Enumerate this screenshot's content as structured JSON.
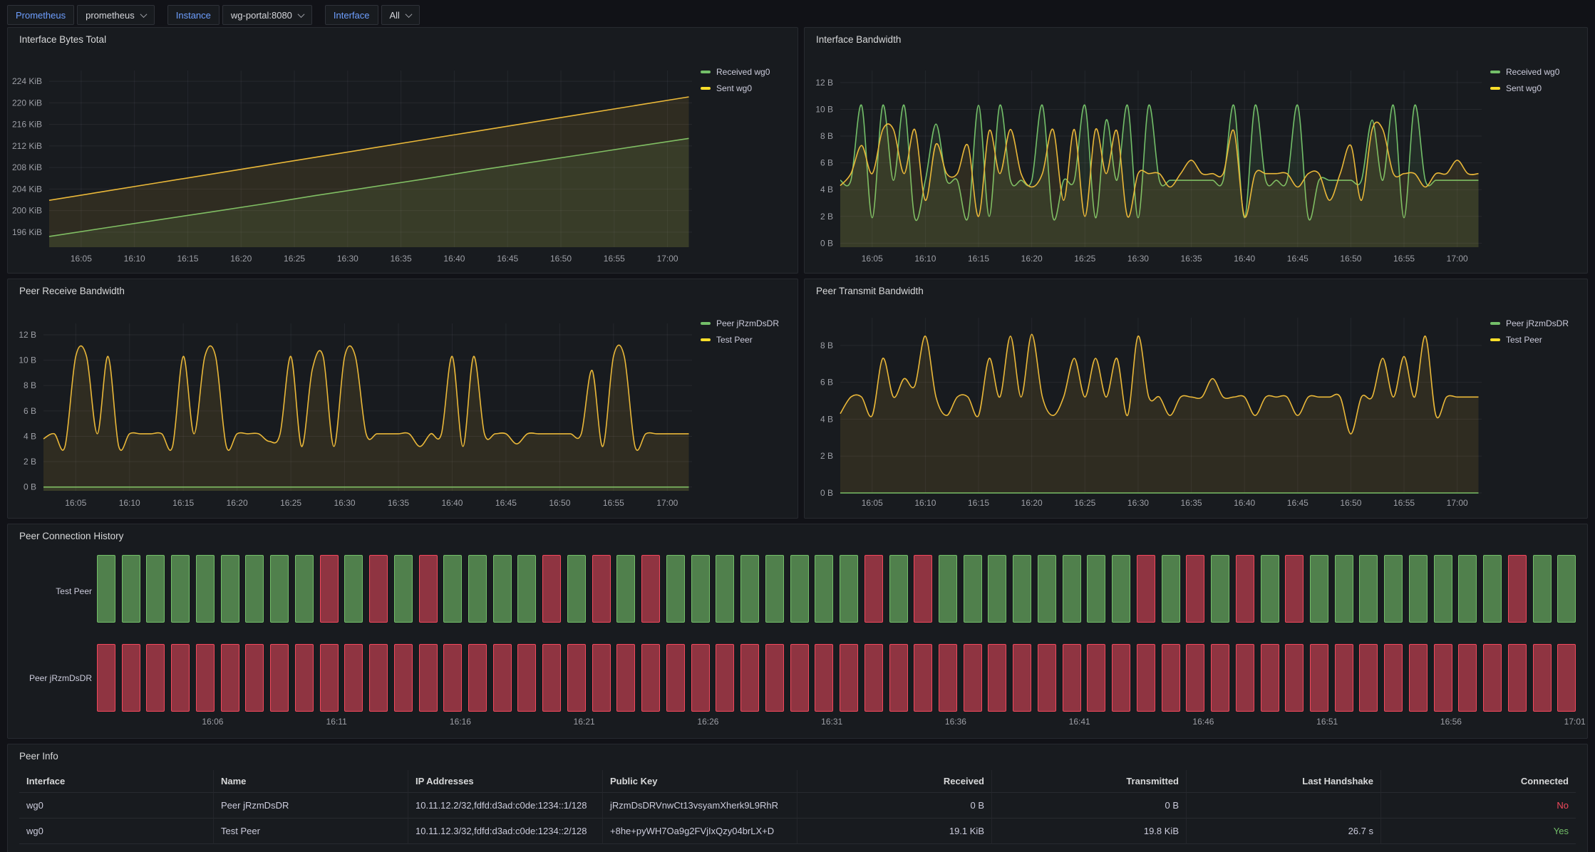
{
  "toolbar": {
    "variables": [
      {
        "label": "Prometheus",
        "value": "prometheus"
      },
      {
        "label": "Instance",
        "value": "wg-portal:8080"
      },
      {
        "label": "Interface",
        "value": "All"
      }
    ]
  },
  "colors": {
    "green": "#73bf69",
    "yellow": "#eab839",
    "red": "#f2495c",
    "label_blue": "#6e9fff"
  },
  "chart_data": [
    {
      "id": "bytes",
      "type": "line",
      "title": "Interface Bytes Total",
      "ylim": [
        193.2,
        226.0
      ],
      "y_ticks": [
        [
          196,
          "196 KiB"
        ],
        [
          200,
          "200 KiB"
        ],
        [
          204,
          "204 KiB"
        ],
        [
          208,
          "208 KiB"
        ],
        [
          212,
          "212 KiB"
        ],
        [
          216,
          "216 KiB"
        ],
        [
          220,
          "220 KiB"
        ],
        [
          224,
          "224 KiB"
        ]
      ],
      "x_ticks": [
        [
          5,
          "16:05"
        ],
        [
          10,
          "16:10"
        ],
        [
          15,
          "16:15"
        ],
        [
          20,
          "16:20"
        ],
        [
          25,
          "16:25"
        ],
        [
          30,
          "16:30"
        ],
        [
          35,
          "16:35"
        ],
        [
          40,
          "16:40"
        ],
        [
          45,
          "16:45"
        ],
        [
          50,
          "16:50"
        ],
        [
          55,
          "16:55"
        ],
        [
          60,
          "17:00"
        ]
      ],
      "legend_position": "right",
      "series": [
        {
          "name": "Received wg0",
          "color_key": "green",
          "smooth": false,
          "x": [
            2,
            7,
            12,
            17,
            22,
            27,
            32,
            37,
            42,
            47,
            52,
            57,
            62
          ],
          "y": [
            195.2,
            196.7,
            198.2,
            199.7,
            201.2,
            202.8,
            204.3,
            205.8,
            207.4,
            208.9,
            210.4,
            211.9,
            213.4
          ]
        },
        {
          "name": "Sent wg0",
          "color_key": "yellow",
          "smooth": false,
          "x": [
            2,
            7,
            12,
            17,
            22,
            27,
            32,
            37,
            42,
            47,
            52,
            57,
            62
          ],
          "y": [
            201.9,
            203.5,
            205.1,
            206.7,
            208.3,
            209.9,
            211.5,
            213.1,
            214.7,
            216.3,
            217.9,
            219.5,
            221.1
          ]
        }
      ]
    },
    {
      "id": "bw",
      "type": "line",
      "title": "Interface Bandwidth",
      "ylim": [
        -0.3,
        12.9
      ],
      "y_ticks": [
        [
          0,
          "0 B"
        ],
        [
          2,
          "2 B"
        ],
        [
          4,
          "4 B"
        ],
        [
          6,
          "6 B"
        ],
        [
          8,
          "8 B"
        ],
        [
          10,
          "10 B"
        ],
        [
          12,
          "12 B"
        ]
      ],
      "x_ticks": [
        [
          5,
          "16:05"
        ],
        [
          10,
          "16:10"
        ],
        [
          15,
          "16:15"
        ],
        [
          20,
          "16:20"
        ],
        [
          25,
          "16:25"
        ],
        [
          30,
          "16:30"
        ],
        [
          35,
          "16:35"
        ],
        [
          40,
          "16:40"
        ],
        [
          45,
          "16:45"
        ],
        [
          50,
          "16:50"
        ],
        [
          55,
          "16:55"
        ],
        [
          60,
          "17:00"
        ]
      ],
      "legend_position": "right",
      "series": [
        {
          "name": "Received wg0",
          "color_key": "green",
          "smooth": true,
          "x": [
            2,
            3,
            4,
            5,
            6,
            7,
            8,
            9,
            10,
            11,
            12,
            13,
            14,
            15,
            16,
            17,
            18,
            19,
            20,
            21,
            22,
            23,
            24,
            25,
            26,
            27,
            28,
            29,
            30,
            31,
            32,
            33,
            34,
            35,
            36,
            37,
            38,
            39,
            40,
            41,
            42,
            43,
            44,
            45,
            46,
            47,
            48,
            49,
            50,
            51,
            52,
            53,
            54,
            55,
            56,
            57,
            58,
            59,
            60,
            61,
            62
          ],
          "y": [
            4.7,
            4.7,
            10.3,
            1.9,
            10.3,
            4.7,
            10.3,
            1.9,
            4.7,
            8.9,
            4.7,
            4.7,
            1.9,
            10.3,
            2,
            10.3,
            4.7,
            4.7,
            4.7,
            10.3,
            1.9,
            4.7,
            4.7,
            10.3,
            1.9,
            9.2,
            4.7,
            10.3,
            1.9,
            10.3,
            4.7,
            4.7,
            4.7,
            4.7,
            4.7,
            4.7,
            4.7,
            10.3,
            1.9,
            10.3,
            4.7,
            4.7,
            4.7,
            10.3,
            1.9,
            4.7,
            4.7,
            4.7,
            4.7,
            4.7,
            9.2,
            4.7,
            10.3,
            1.9,
            10.3,
            4.7,
            4.7,
            4.7,
            4.7,
            4.7,
            4.7
          ]
        },
        {
          "name": "Sent wg0",
          "color_key": "yellow",
          "smooth": true,
          "x": [
            2,
            3,
            4,
            5,
            6,
            7,
            8,
            9,
            10,
            11,
            12,
            13,
            14,
            15,
            16,
            17,
            18,
            19,
            20,
            21,
            22,
            23,
            24,
            25,
            26,
            27,
            28,
            29,
            30,
            31,
            32,
            33,
            34,
            35,
            36,
            37,
            38,
            39,
            40,
            41,
            42,
            43,
            44,
            45,
            46,
            47,
            48,
            49,
            50,
            51,
            52,
            53,
            54,
            55,
            56,
            57,
            58,
            59,
            60,
            61,
            62
          ],
          "y": [
            4.3,
            5.2,
            7.3,
            5.2,
            8.5,
            8.5,
            5.2,
            8.5,
            3.2,
            7.4,
            5.2,
            5.2,
            7.3,
            2,
            8.4,
            5.2,
            8.5,
            5.2,
            4.2,
            5.2,
            8.5,
            3.2,
            8.5,
            2,
            8.5,
            5.2,
            8.4,
            2,
            5.2,
            5.2,
            5.2,
            4.2,
            5.2,
            6.2,
            5.2,
            5.2,
            5.2,
            8.4,
            2,
            5.2,
            5.2,
            5.2,
            5.2,
            4.2,
            5.2,
            5.2,
            3.2,
            5.2,
            7.3,
            3.2,
            8.5,
            8.5,
            5.2,
            5.2,
            5.2,
            4.2,
            5.2,
            5.2,
            6.2,
            5.2,
            5.2
          ]
        }
      ]
    },
    {
      "id": "rx",
      "type": "line",
      "title": "Peer Receive Bandwidth",
      "ylim": [
        -0.3,
        12.9
      ],
      "y_ticks": [
        [
          0,
          "0 B"
        ],
        [
          2,
          "2 B"
        ],
        [
          4,
          "4 B"
        ],
        [
          6,
          "6 B"
        ],
        [
          8,
          "8 B"
        ],
        [
          10,
          "10 B"
        ],
        [
          12,
          "12 B"
        ]
      ],
      "x_ticks": [
        [
          5,
          "16:05"
        ],
        [
          10,
          "16:10"
        ],
        [
          15,
          "16:15"
        ],
        [
          20,
          "16:20"
        ],
        [
          25,
          "16:25"
        ],
        [
          30,
          "16:30"
        ],
        [
          35,
          "16:35"
        ],
        [
          40,
          "16:40"
        ],
        [
          45,
          "16:45"
        ],
        [
          50,
          "16:50"
        ],
        [
          55,
          "16:55"
        ],
        [
          60,
          "17:00"
        ]
      ],
      "legend_position": "right",
      "series": [
        {
          "name": "Peer jRzmDsDR",
          "color_key": "green",
          "smooth": false,
          "x": [
            2,
            62
          ],
          "y": [
            0,
            0
          ]
        },
        {
          "name": "Test Peer",
          "color_key": "yellow",
          "smooth": true,
          "x": [
            2,
            3,
            4,
            5,
            6,
            7,
            8,
            9,
            10,
            11,
            12,
            13,
            14,
            15,
            16,
            17,
            18,
            19,
            20,
            21,
            22,
            23,
            24,
            25,
            26,
            27,
            28,
            29,
            30,
            31,
            32,
            33,
            34,
            35,
            36,
            37,
            38,
            39,
            40,
            41,
            42,
            43,
            44,
            45,
            46,
            47,
            48,
            49,
            50,
            51,
            52,
            53,
            54,
            55,
            56,
            57,
            58,
            59,
            60,
            61,
            62
          ],
          "y": [
            3.8,
            4.2,
            3.2,
            10.3,
            10.3,
            4.2,
            10.3,
            3.2,
            4.2,
            4.2,
            4.2,
            4.2,
            3.2,
            10.3,
            4.2,
            10.3,
            10.3,
            3.2,
            4.2,
            4.2,
            4.2,
            3.6,
            4.2,
            10.3,
            3.2,
            9.3,
            10.3,
            3.2,
            10.3,
            10.3,
            4.2,
            4.2,
            4.2,
            4.2,
            4.2,
            3.2,
            4.2,
            4.2,
            10.3,
            3.2,
            10.3,
            4.2,
            4.2,
            4.2,
            3.4,
            4.2,
            4.2,
            4.2,
            4.2,
            4.2,
            4.2,
            9.2,
            3.2,
            10.3,
            10.3,
            3.2,
            4.2,
            4.2,
            4.2,
            4.2,
            4.2
          ]
        }
      ]
    },
    {
      "id": "tx",
      "type": "line",
      "title": "Peer Transmit Bandwidth",
      "ylim": [
        0,
        9.5
      ],
      "y_ticks": [
        [
          0,
          "0 B"
        ],
        [
          2,
          "2 B"
        ],
        [
          4,
          "4 B"
        ],
        [
          6,
          "6 B"
        ],
        [
          8,
          "8 B"
        ]
      ],
      "x_ticks": [
        [
          5,
          "16:05"
        ],
        [
          10,
          "16:10"
        ],
        [
          15,
          "16:15"
        ],
        [
          20,
          "16:20"
        ],
        [
          25,
          "16:25"
        ],
        [
          30,
          "16:30"
        ],
        [
          35,
          "16:35"
        ],
        [
          40,
          "16:40"
        ],
        [
          45,
          "16:45"
        ],
        [
          50,
          "16:50"
        ],
        [
          55,
          "16:55"
        ],
        [
          60,
          "17:00"
        ]
      ],
      "legend_position": "right",
      "series": [
        {
          "name": "Peer jRzmDsDR",
          "color_key": "green",
          "smooth": false,
          "x": [
            2,
            62
          ],
          "y": [
            0,
            0
          ]
        },
        {
          "name": "Test Peer",
          "color_key": "yellow",
          "smooth": true,
          "x": [
            2,
            3,
            4,
            5,
            6,
            7,
            8,
            9,
            10,
            11,
            12,
            13,
            14,
            15,
            16,
            17,
            18,
            19,
            20,
            21,
            22,
            23,
            24,
            25,
            26,
            27,
            28,
            29,
            30,
            31,
            32,
            33,
            34,
            35,
            36,
            37,
            38,
            39,
            40,
            41,
            42,
            43,
            44,
            45,
            46,
            47,
            48,
            49,
            50,
            51,
            52,
            53,
            54,
            55,
            56,
            57,
            58,
            59,
            60,
            61,
            62
          ],
          "y": [
            4.3,
            5.2,
            5.2,
            4.2,
            7.3,
            5.2,
            6.2,
            5.8,
            8.5,
            5.2,
            4.2,
            5.2,
            5.2,
            4.2,
            7.3,
            5.2,
            8.5,
            5.2,
            8.6,
            5.2,
            4.2,
            5.2,
            7.3,
            5.2,
            7.3,
            5.2,
            7.3,
            4.2,
            8.5,
            5.2,
            5.2,
            4.2,
            5.2,
            5.2,
            5.2,
            6.2,
            5.2,
            5.2,
            5.2,
            4.2,
            5.2,
            5.2,
            5.2,
            4.2,
            5.2,
            5.2,
            5.2,
            5.2,
            3.2,
            5.2,
            5.2,
            7.3,
            5.2,
            7.4,
            5.2,
            8.5,
            4.2,
            5.2,
            5.2,
            5.2,
            5.2
          ]
        }
      ]
    },
    {
      "id": "history",
      "type": "status-history",
      "title": "Peer Connection History",
      "x_tick_labels": [
        "16:06",
        "16:11",
        "16:16",
        "16:21",
        "16:26",
        "16:31",
        "16:36",
        "16:41",
        "16:46",
        "16:51",
        "16:56",
        "17:01"
      ],
      "rows": [
        {
          "label": "Test Peer",
          "pattern": "GGGGGGGGGRGRGRGGGGRGRGRGGGGGGGGRGRGGGGGGGGRGRGRGRGGGGGGGGRGG"
        },
        {
          "label": "Peer jRzmDsDR",
          "pattern": "RRRRRRRRRRRRRRRRRRRRRRRRRRRRRRRRRRRRRRRRRRRRRRRRRRRRRRRRRRRR"
        }
      ]
    },
    {
      "id": "peer_info",
      "type": "table",
      "title": "Peer Info",
      "columns": [
        "Interface",
        "Name",
        "IP Addresses",
        "Public Key",
        "Received",
        "Transmitted",
        "Last Handshake",
        "Connected"
      ],
      "rows": [
        {
          "cells": [
            "wg0",
            "Peer jRzmDsDR",
            "10.11.12.2/32,fdfd:d3ad:c0de:1234::1/128",
            "jRzmDsDRVnwCt13vsyamXherk9L9RhR",
            "0 B",
            "0 B",
            "",
            "No"
          ]
        },
        {
          "cells": [
            "wg0",
            "Test Peer",
            "10.11.12.3/32,fdfd:d3ad:c0de:1234::2/128",
            "+8he+pyWH7Oa9g2FVjIxQzy04brLX+D",
            "19.1 KiB",
            "19.8 KiB",
            "26.7 s",
            "Yes"
          ]
        }
      ]
    }
  ]
}
